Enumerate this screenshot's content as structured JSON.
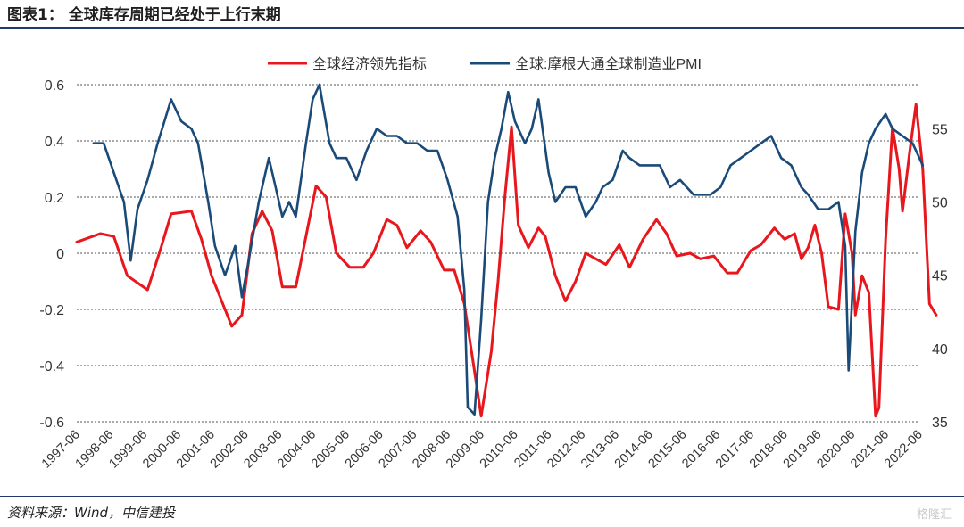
{
  "header": {
    "figure_title": "图表1：  全球库存周期已经处于上行末期"
  },
  "footer": {
    "source": "资料来源：Wind，中信建投",
    "watermark": "格隆汇"
  },
  "colors": {
    "red": "#e8171d",
    "blue": "#1a4a78",
    "grid": "#555555",
    "text": "#333333"
  },
  "chart_data": {
    "type": "line",
    "title": "",
    "legend_position": "top-center",
    "x_tick_labels": [
      "1997-06",
      "1998-06",
      "1999-06",
      "2000-06",
      "2001-06",
      "2002-06",
      "2003-06",
      "2004-06",
      "2005-06",
      "2006-06",
      "2007-06",
      "2008-06",
      "2009-06",
      "2010-06",
      "2011-06",
      "2012-06",
      "2013-06",
      "2014-06",
      "2015-06",
      "2016-06",
      "2017-06",
      "2018-06",
      "2019-06",
      "2020-06",
      "2021-06",
      "2022-06"
    ],
    "y_left": {
      "min": -0.6,
      "max": 0.6,
      "ticks": [
        "-0.6",
        "-0.4",
        "-0.2",
        "0",
        "0.2",
        "0.4",
        "0.6"
      ]
    },
    "y_right": {
      "min": 35,
      "max": 58,
      "ticks": [
        "35",
        "40",
        "45",
        "50",
        "55"
      ]
    },
    "grid": "horizontal-dashed",
    "series": [
      {
        "name": "全球经济领先指标",
        "axis": "left",
        "color": "#e8171d",
        "points": [
          [
            1997.5,
            0.04
          ],
          [
            1998.2,
            0.07
          ],
          [
            1998.6,
            0.06
          ],
          [
            1999.0,
            -0.08
          ],
          [
            1999.6,
            -0.13
          ],
          [
            2000.0,
            0.02
          ],
          [
            2000.3,
            0.14
          ],
          [
            2000.9,
            0.15
          ],
          [
            2001.2,
            0.05
          ],
          [
            2001.5,
            -0.08
          ],
          [
            2001.9,
            -0.2
          ],
          [
            2002.1,
            -0.26
          ],
          [
            2002.4,
            -0.22
          ],
          [
            2002.7,
            0.07
          ],
          [
            2003.0,
            0.15
          ],
          [
            2003.3,
            0.08
          ],
          [
            2003.6,
            -0.12
          ],
          [
            2004.0,
            -0.12
          ],
          [
            2004.3,
            0.06
          ],
          [
            2004.6,
            0.24
          ],
          [
            2004.9,
            0.2
          ],
          [
            2005.2,
            0.0
          ],
          [
            2005.6,
            -0.05
          ],
          [
            2006.0,
            -0.05
          ],
          [
            2006.3,
            0.0
          ],
          [
            2006.7,
            0.12
          ],
          [
            2007.0,
            0.1
          ],
          [
            2007.3,
            0.02
          ],
          [
            2007.7,
            0.08
          ],
          [
            2008.0,
            0.04
          ],
          [
            2008.4,
            -0.06
          ],
          [
            2008.7,
            -0.06
          ],
          [
            2009.0,
            -0.18
          ],
          [
            2009.3,
            -0.42
          ],
          [
            2009.5,
            -0.58
          ],
          [
            2009.8,
            -0.35
          ],
          [
            2010.0,
            -0.1
          ],
          [
            2010.2,
            0.2
          ],
          [
            2010.4,
            0.45
          ],
          [
            2010.6,
            0.1
          ],
          [
            2010.9,
            0.02
          ],
          [
            2011.2,
            0.09
          ],
          [
            2011.4,
            0.06
          ],
          [
            2011.7,
            -0.08
          ],
          [
            2012.0,
            -0.17
          ],
          [
            2012.3,
            -0.1
          ],
          [
            2012.6,
            0.0
          ],
          [
            2012.9,
            -0.02
          ],
          [
            2013.2,
            -0.04
          ],
          [
            2013.6,
            0.03
          ],
          [
            2013.9,
            -0.05
          ],
          [
            2014.3,
            0.05
          ],
          [
            2014.7,
            0.12
          ],
          [
            2015.0,
            0.07
          ],
          [
            2015.3,
            -0.01
          ],
          [
            2015.7,
            0.0
          ],
          [
            2016.0,
            -0.02
          ],
          [
            2016.4,
            -0.01
          ],
          [
            2016.8,
            -0.07
          ],
          [
            2017.1,
            -0.07
          ],
          [
            2017.5,
            0.01
          ],
          [
            2017.8,
            0.03
          ],
          [
            2018.2,
            0.09
          ],
          [
            2018.5,
            0.05
          ],
          [
            2018.8,
            0.07
          ],
          [
            2019.0,
            -0.02
          ],
          [
            2019.2,
            0.02
          ],
          [
            2019.4,
            0.1
          ],
          [
            2019.6,
            0.0
          ],
          [
            2019.8,
            -0.19
          ],
          [
            2020.1,
            -0.2
          ],
          [
            2020.3,
            0.14
          ],
          [
            2020.5,
            0.0
          ],
          [
            2020.6,
            -0.22
          ],
          [
            2020.8,
            -0.08
          ],
          [
            2021.0,
            -0.14
          ],
          [
            2021.2,
            -0.58
          ],
          [
            2021.3,
            -0.55
          ],
          [
            2021.5,
            0.05
          ],
          [
            2021.7,
            0.45
          ],
          [
            2021.9,
            0.3
          ],
          [
            2022.0,
            0.15
          ],
          [
            2022.2,
            0.35
          ],
          [
            2022.4,
            0.53
          ],
          [
            2022.6,
            0.3
          ],
          [
            2022.8,
            -0.18
          ],
          [
            2023.0,
            -0.22
          ]
        ]
      },
      {
        "name": "全球:摩根大通全球制造业PMI",
        "axis": "right",
        "color": "#1a4a78",
        "points": [
          [
            1998.0,
            54.0
          ],
          [
            1998.3,
            54.0
          ],
          [
            1998.6,
            52.0
          ],
          [
            1998.9,
            50.0
          ],
          [
            1999.1,
            46.0
          ],
          [
            1999.3,
            49.5
          ],
          [
            1999.6,
            51.5
          ],
          [
            1999.9,
            54.0
          ],
          [
            2000.1,
            55.5
          ],
          [
            2000.3,
            57.0
          ],
          [
            2000.6,
            55.5
          ],
          [
            2000.9,
            55.0
          ],
          [
            2001.1,
            54.0
          ],
          [
            2001.4,
            50.0
          ],
          [
            2001.6,
            47.0
          ],
          [
            2001.9,
            45.0
          ],
          [
            2002.2,
            47.0
          ],
          [
            2002.4,
            43.5
          ],
          [
            2002.6,
            46.0
          ],
          [
            2002.9,
            50.0
          ],
          [
            2003.2,
            53.0
          ],
          [
            2003.4,
            51.0
          ],
          [
            2003.6,
            49.0
          ],
          [
            2003.8,
            50.0
          ],
          [
            2004.0,
            49.0
          ],
          [
            2004.3,
            54.0
          ],
          [
            2004.5,
            57.0
          ],
          [
            2004.7,
            58.0
          ],
          [
            2005.0,
            54.0
          ],
          [
            2005.2,
            53.0
          ],
          [
            2005.5,
            53.0
          ],
          [
            2005.8,
            51.5
          ],
          [
            2006.1,
            53.5
          ],
          [
            2006.4,
            55.0
          ],
          [
            2006.7,
            54.5
          ],
          [
            2007.0,
            54.5
          ],
          [
            2007.3,
            54.0
          ],
          [
            2007.6,
            54.0
          ],
          [
            2007.9,
            53.5
          ],
          [
            2008.2,
            53.5
          ],
          [
            2008.5,
            51.5
          ],
          [
            2008.8,
            49.0
          ],
          [
            2009.0,
            44.0
          ],
          [
            2009.1,
            36.0
          ],
          [
            2009.3,
            35.5
          ],
          [
            2009.5,
            42.0
          ],
          [
            2009.7,
            50.0
          ],
          [
            2009.9,
            53.0
          ],
          [
            2010.1,
            55.0
          ],
          [
            2010.3,
            57.5
          ],
          [
            2010.5,
            55.5
          ],
          [
            2010.8,
            54.0
          ],
          [
            2011.0,
            55.0
          ],
          [
            2011.2,
            57.0
          ],
          [
            2011.5,
            52.0
          ],
          [
            2011.7,
            50.0
          ],
          [
            2012.0,
            51.0
          ],
          [
            2012.3,
            51.0
          ],
          [
            2012.6,
            49.0
          ],
          [
            2012.9,
            50.0
          ],
          [
            2013.1,
            51.0
          ],
          [
            2013.4,
            51.5
          ],
          [
            2013.7,
            53.5
          ],
          [
            2013.9,
            53.0
          ],
          [
            2014.2,
            52.5
          ],
          [
            2014.5,
            52.5
          ],
          [
            2014.8,
            52.5
          ],
          [
            2015.1,
            51.0
          ],
          [
            2015.4,
            51.5
          ],
          [
            2015.8,
            50.5
          ],
          [
            2016.0,
            50.5
          ],
          [
            2016.3,
            50.5
          ],
          [
            2016.6,
            51.0
          ],
          [
            2016.9,
            52.5
          ],
          [
            2017.2,
            53.0
          ],
          [
            2017.5,
            53.5
          ],
          [
            2017.8,
            54.0
          ],
          [
            2018.1,
            54.5
          ],
          [
            2018.4,
            53.0
          ],
          [
            2018.7,
            52.5
          ],
          [
            2019.0,
            51.0
          ],
          [
            2019.2,
            50.5
          ],
          [
            2019.5,
            49.5
          ],
          [
            2019.8,
            49.5
          ],
          [
            2020.1,
            50.0
          ],
          [
            2020.3,
            47.0
          ],
          [
            2020.4,
            38.5
          ],
          [
            2020.6,
            48.0
          ],
          [
            2020.8,
            52.0
          ],
          [
            2021.0,
            54.0
          ],
          [
            2021.2,
            55.0
          ],
          [
            2021.5,
            56.0
          ],
          [
            2021.7,
            55.0
          ],
          [
            2022.0,
            54.5
          ],
          [
            2022.3,
            54.0
          ],
          [
            2022.6,
            52.5
          ]
        ]
      }
    ]
  }
}
